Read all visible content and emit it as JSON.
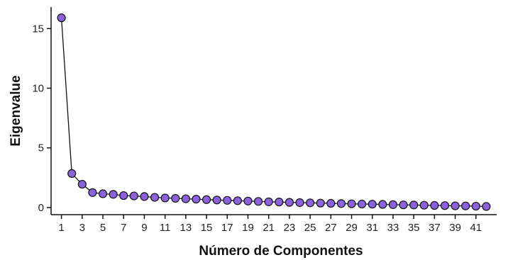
{
  "chart_data": {
    "type": "scatter",
    "title": "",
    "xlabel": "Número de Componentes",
    "ylabel": "Eigenvalue",
    "xlim": [
      0,
      43
    ],
    "ylim": [
      -0.6,
      16.8
    ],
    "x_ticks": [
      1,
      3,
      5,
      7,
      9,
      11,
      13,
      15,
      17,
      19,
      21,
      23,
      25,
      27,
      29,
      31,
      33,
      35,
      37,
      39,
      41
    ],
    "y_ticks": [
      0,
      5,
      10,
      15
    ],
    "grid": false,
    "legend": "none",
    "colors": {
      "marker_fill": "#8b62dc",
      "marker_edge": "#111111",
      "line": "#111111"
    },
    "x": [
      1,
      2,
      3,
      4,
      5,
      6,
      7,
      8,
      9,
      10,
      11,
      12,
      13,
      14,
      15,
      16,
      17,
      18,
      19,
      20,
      21,
      22,
      23,
      24,
      25,
      26,
      27,
      28,
      29,
      30,
      31,
      32,
      33,
      34,
      35,
      36,
      37,
      38,
      39,
      40,
      41,
      42
    ],
    "y": [
      15.9,
      2.85,
      1.95,
      1.25,
      1.15,
      1.1,
      1.0,
      0.97,
      0.92,
      0.85,
      0.8,
      0.77,
      0.73,
      0.7,
      0.66,
      0.63,
      0.6,
      0.57,
      0.54,
      0.51,
      0.48,
      0.46,
      0.43,
      0.41,
      0.39,
      0.37,
      0.35,
      0.33,
      0.31,
      0.29,
      0.28,
      0.26,
      0.24,
      0.22,
      0.21,
      0.19,
      0.17,
      0.16,
      0.14,
      0.13,
      0.11,
      0.09
    ]
  }
}
